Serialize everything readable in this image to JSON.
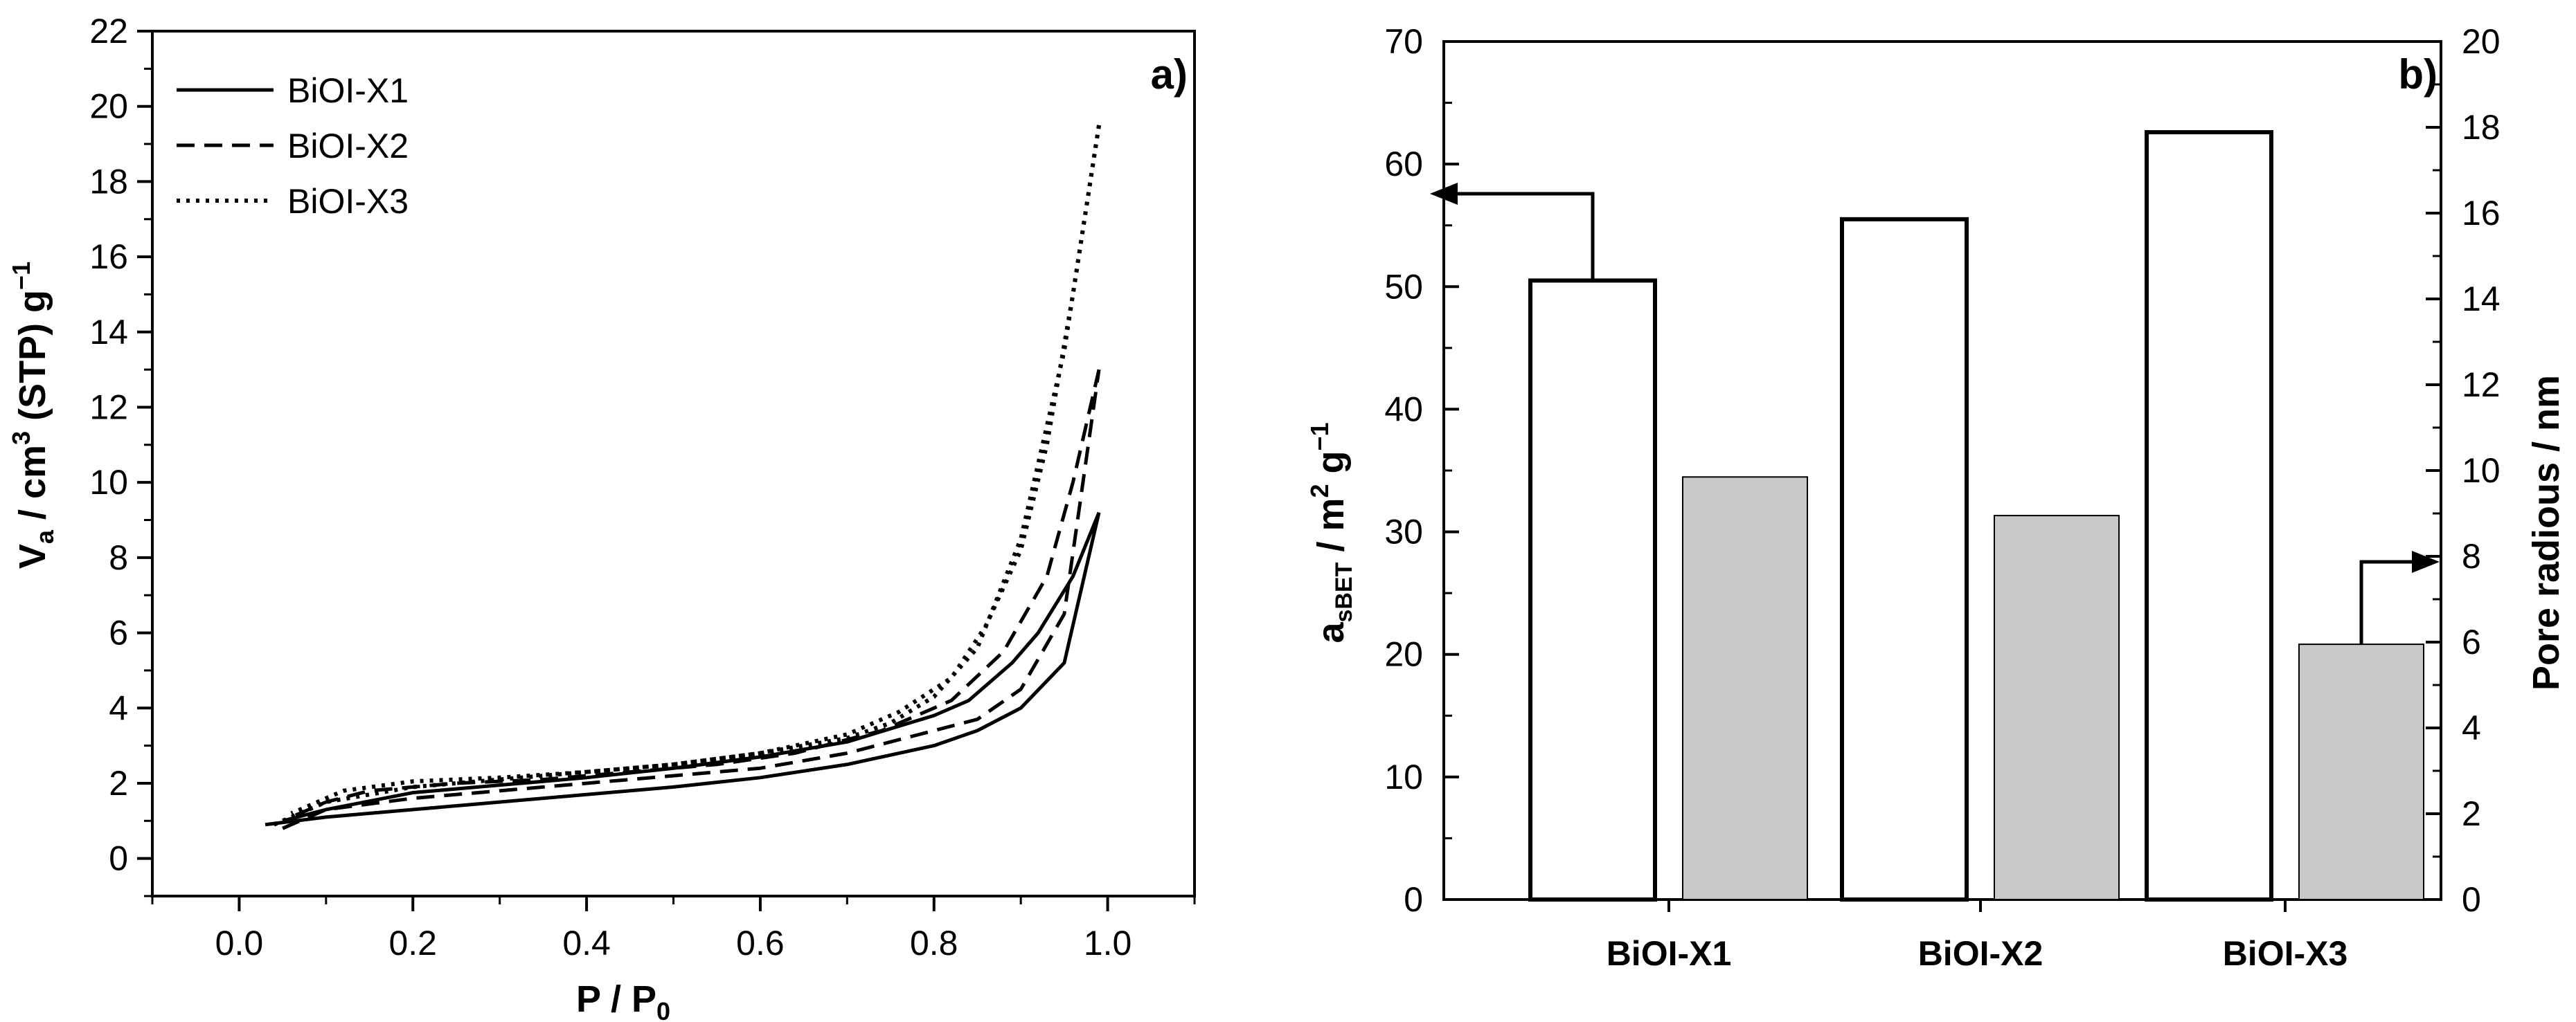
{
  "chart_data": [
    {
      "type": "line",
      "panel_label": "a)",
      "xlabel": "P / P",
      "xlabel_sub": "0",
      "ylabel_parts": [
        "V",
        "a",
        " / cm",
        "3",
        " (STP) g",
        "−1"
      ],
      "xlim": [
        -0.1,
        1.1
      ],
      "ylim": [
        -1,
        22
      ],
      "xticks": [
        0.0,
        0.2,
        0.4,
        0.6,
        0.8,
        1.0
      ],
      "xtick_labels": [
        "0.0",
        "0.2",
        "0.4",
        "0.6",
        "0.8",
        "1.0"
      ],
      "yticks": [
        0,
        2,
        4,
        6,
        8,
        10,
        12,
        14,
        16,
        18,
        20,
        22
      ],
      "ytick_labels": [
        "0",
        "2",
        "4",
        "6",
        "8",
        "10",
        "12",
        "14",
        "16",
        "18",
        "20",
        "22"
      ],
      "legend_position": "top-left",
      "series": [
        {
          "name": "BiOI-X1",
          "line_style": "solid",
          "adsorption": {
            "x": [
              0.03,
              0.1,
              0.2,
              0.3,
              0.4,
              0.5,
              0.6,
              0.7,
              0.8,
              0.85,
              0.9,
              0.95,
              0.99
            ],
            "y": [
              0.9,
              1.1,
              1.3,
              1.5,
              1.7,
              1.9,
              2.15,
              2.5,
              3.0,
              3.4,
              4.0,
              5.2,
              9.2
            ]
          },
          "desorption": {
            "x": [
              0.99,
              0.96,
              0.92,
              0.89,
              0.84,
              0.8,
              0.7,
              0.6,
              0.5,
              0.4,
              0.3,
              0.2,
              0.1,
              0.05
            ],
            "y": [
              9.2,
              7.5,
              6.0,
              5.2,
              4.2,
              3.8,
              3.1,
              2.7,
              2.4,
              2.15,
              1.95,
              1.75,
              1.3,
              1.0
            ]
          }
        },
        {
          "name": "BiOI-X2",
          "line_style": "dashed",
          "adsorption": {
            "x": [
              0.05,
              0.1,
              0.2,
              0.3,
              0.4,
              0.5,
              0.6,
              0.7,
              0.8,
              0.85,
              0.9,
              0.95,
              0.99
            ],
            "y": [
              0.8,
              1.3,
              1.6,
              1.8,
              2.0,
              2.2,
              2.4,
              2.8,
              3.4,
              3.7,
              4.5,
              6.5,
              13.0
            ]
          },
          "desorption": {
            "x": [
              0.99,
              0.96,
              0.93,
              0.88,
              0.82,
              0.74,
              0.64,
              0.55,
              0.45,
              0.35,
              0.25,
              0.15,
              0.1,
              0.06
            ],
            "y": [
              13.0,
              10.0,
              7.5,
              5.5,
              4.2,
              3.4,
              2.8,
              2.5,
              2.3,
              2.1,
              2.0,
              1.8,
              1.5,
              1.1
            ]
          }
        },
        {
          "name": "BiOI-X3",
          "line_style": "dotted",
          "adsorption": {
            "x": [
              0.04,
              0.1,
              0.2,
              0.3,
              0.4,
              0.5,
              0.6,
              0.7,
              0.75,
              0.8,
              0.85,
              0.9,
              0.95,
              0.99
            ],
            "y": [
              0.9,
              1.5,
              1.9,
              2.1,
              2.3,
              2.5,
              2.8,
              3.2,
              3.6,
              4.3,
              5.6,
              8.5,
              13.5,
              19.5
            ]
          },
          "desorption": {
            "x": [
              0.99,
              0.96,
              0.93,
              0.9,
              0.86,
              0.82,
              0.76,
              0.7,
              0.6,
              0.5,
              0.4,
              0.3,
              0.2,
              0.12,
              0.06
            ],
            "y": [
              19.5,
              15.0,
              11.0,
              8.2,
              6.2,
              4.8,
              3.9,
              3.3,
              2.8,
              2.5,
              2.3,
              2.15,
              2.05,
              1.8,
              1.2
            ]
          }
        }
      ]
    },
    {
      "type": "bar",
      "panel_label": "b)",
      "categories": [
        "BiOI-X1",
        "BiOI-X2",
        "BiOI-X3"
      ],
      "ylabel_left_parts": [
        "a",
        "sBET",
        " / m",
        "2",
        " g",
        "−1"
      ],
      "ylabel_right": "Pore radious / nm",
      "ylim_left": [
        0,
        70
      ],
      "ylim_right": [
        0,
        20
      ],
      "yticks_left": [
        0,
        10,
        20,
        30,
        40,
        50,
        60,
        70
      ],
      "ytick_labels_left": [
        "0",
        "10",
        "20",
        "30",
        "40",
        "50",
        "60",
        "70"
      ],
      "yticks_right": [
        0,
        2,
        4,
        6,
        8,
        10,
        12,
        14,
        16,
        18,
        20
      ],
      "ytick_labels_right": [
        "0",
        "2",
        "4",
        "6",
        "8",
        "10",
        "12",
        "14",
        "16",
        "18",
        "20"
      ],
      "series": [
        {
          "name": "a_sBET",
          "axis": "left",
          "unit": "m2 g-1",
          "color": "#ffffff",
          "values": [
            50.5,
            55.5,
            62.6
          ]
        },
        {
          "name": "Pore radious",
          "axis": "right",
          "unit": "nm",
          "color": "#c8c8c8",
          "values": [
            9.85,
            8.95,
            5.95
          ]
        }
      ],
      "arrows": [
        {
          "series": "a_sBET",
          "category": "BiOI-X1",
          "points_to": "left axis"
        },
        {
          "series": "Pore radious",
          "category": "BiOI-X3",
          "points_to": "right axis"
        }
      ]
    }
  ]
}
